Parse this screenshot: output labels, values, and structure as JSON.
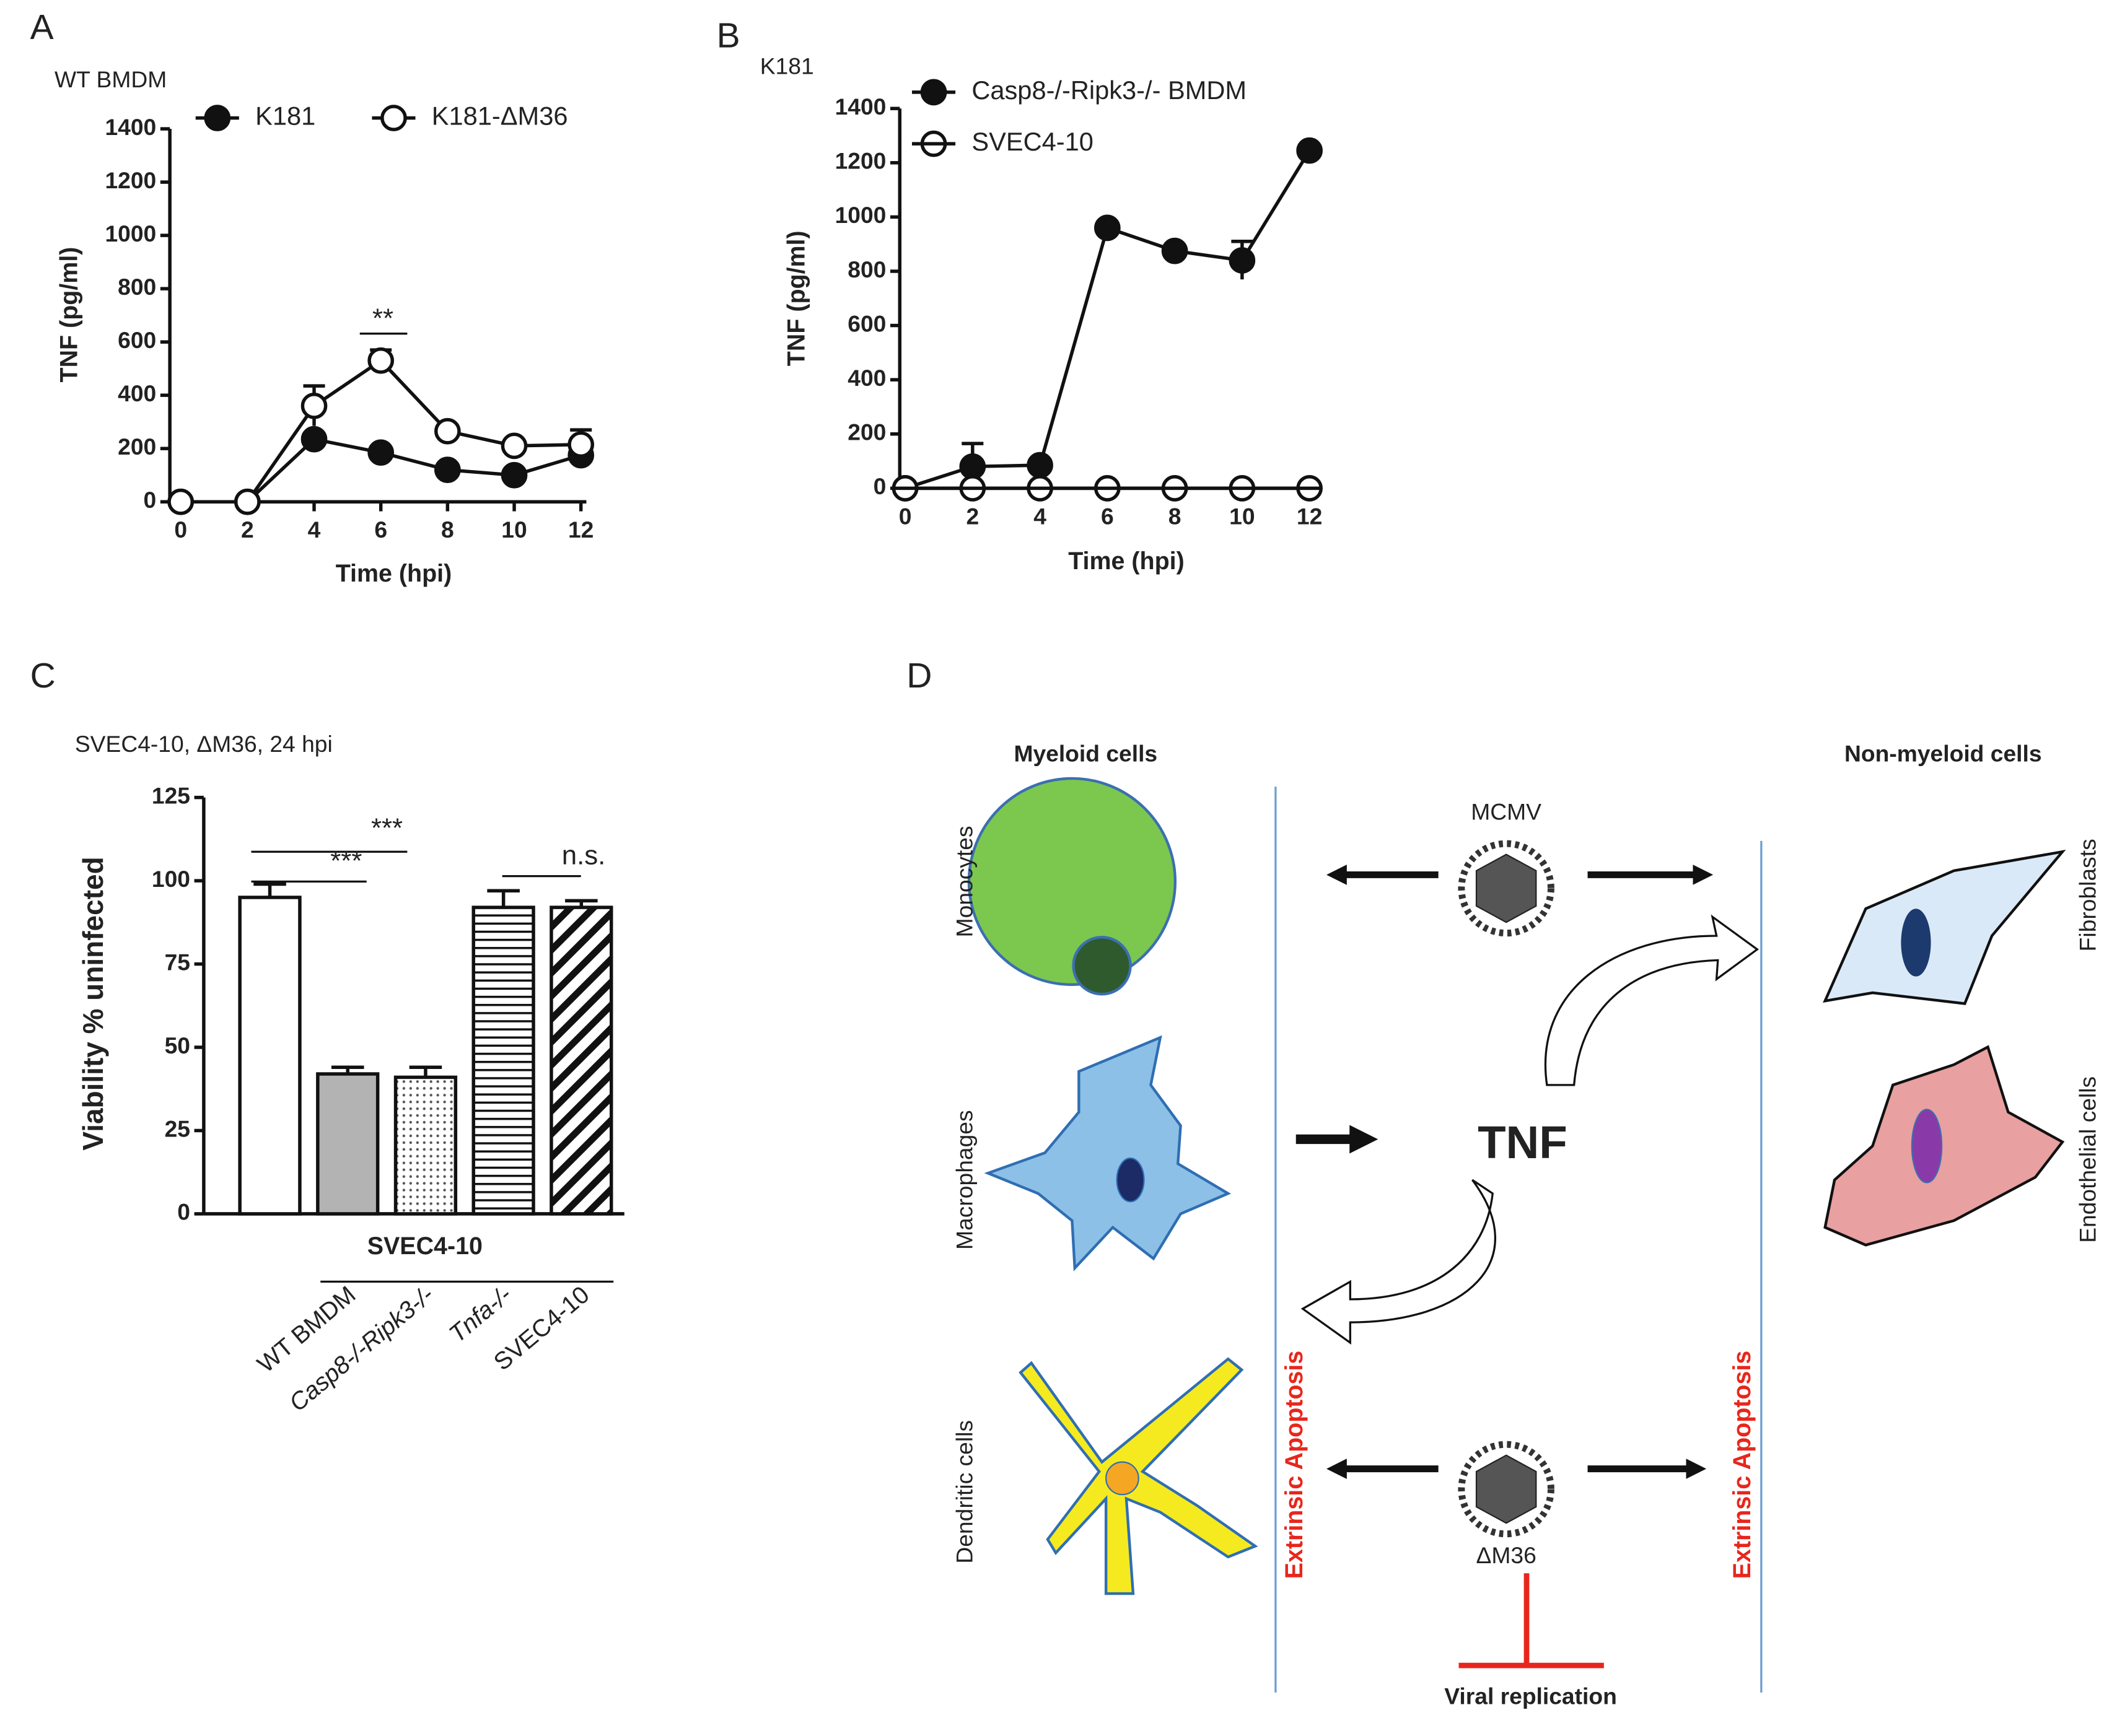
{
  "chart_data": [
    {
      "type": "line",
      "panel": "A",
      "subtitle": "WT BMDM",
      "x_label": "Time (hpi)",
      "y_label": "TNF (pg/ml)",
      "x": [
        0,
        2,
        4,
        6,
        8,
        10,
        12
      ],
      "xlim": [
        0,
        12
      ],
      "xticks": [
        0,
        2,
        4,
        6,
        8,
        10,
        12
      ],
      "ylim": [
        0,
        1400
      ],
      "yticks": [
        0,
        200,
        400,
        600,
        800,
        1000,
        1200,
        1400
      ],
      "series": [
        {
          "name": "K181",
          "marker": "filled",
          "color": "#111111",
          "values": [
            0,
            0,
            235,
            185,
            120,
            100,
            175
          ],
          "errors": [
            0,
            0,
            15,
            10,
            10,
            10,
            20
          ]
        },
        {
          "name": "K181-ΔM36",
          "marker": "open",
          "color": "#111111",
          "values": [
            0,
            0,
            360,
            530,
            265,
            210,
            215
          ],
          "errors": [
            0,
            0,
            75,
            40,
            15,
            10,
            55
          ]
        }
      ],
      "annotations": [
        "**"
      ]
    },
    {
      "type": "line",
      "panel": "B",
      "subtitle": "K181",
      "x_label": "Time (hpi)",
      "y_label": "TNF (pg/ml)",
      "x": [
        0,
        2,
        4,
        6,
        8,
        10,
        12
      ],
      "xlim": [
        0,
        12
      ],
      "xticks": [
        0,
        2,
        4,
        6,
        8,
        10,
        12
      ],
      "ylim": [
        0,
        1400
      ],
      "yticks": [
        0,
        200,
        400,
        600,
        800,
        1000,
        1200,
        1400
      ],
      "series": [
        {
          "name": "Casp8-/-Ripk3-/- BMDM",
          "marker": "filled",
          "color": "#111111",
          "values": [
            0,
            80,
            85,
            960,
            875,
            840,
            1245
          ],
          "errors": [
            0,
            85,
            5,
            10,
            10,
            70,
            10
          ]
        },
        {
          "name": "SVEC4-10",
          "marker": "half",
          "color": "#111111",
          "values": [
            0,
            0,
            0,
            0,
            0,
            0,
            0
          ],
          "errors": [
            0,
            0,
            0,
            0,
            0,
            0,
            0
          ]
        }
      ],
      "annotations": []
    },
    {
      "type": "bar",
      "panel": "C",
      "subtitle": "SVEC4-10, ΔM36, 24 hpi",
      "x_label": "SVEC4-10",
      "y_label": "Viability % uninfected",
      "categories": [
        null,
        "WT BMDM",
        "Casp8-/-Ripk3-/-",
        "Tnfa-/-",
        "SVEC4-10"
      ],
      "values": [
        95,
        42,
        41,
        92,
        92
      ],
      "errors": [
        4,
        2,
        3,
        5,
        2
      ],
      "colors": [
        "#ffffff",
        "#b3b3b3",
        "#ffffff",
        "#ffffff",
        "#ffffff"
      ],
      "patterns": [
        null,
        null,
        "dots",
        "horizontal",
        "diagonal"
      ],
      "ylim": [
        0,
        125
      ],
      "yticks": [
        0,
        25,
        50,
        75,
        100,
        125
      ],
      "annotations": [
        "***",
        "***",
        "n.s."
      ]
    }
  ],
  "diagram": {
    "panel": "D",
    "left_header": "Myeloid cells",
    "right_header": "Non-myeloid cells",
    "left_cells": [
      "Monocytes",
      "Macrophages",
      "Dendritic cells"
    ],
    "right_cells": [
      "Fibroblasts",
      "Endothelial cells"
    ],
    "virus_top": "MCMV",
    "center": "TNF",
    "virus_bottom": "ΔM36",
    "apoptosis_left": "Extrinsic Apoptosis",
    "apoptosis_right": "Extrinsic Apoptosis",
    "inhibited": "Viral replication"
  }
}
